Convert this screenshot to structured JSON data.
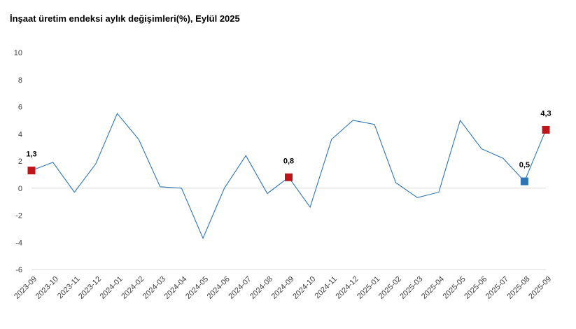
{
  "title": "İnşaat üretim endeksi aylık değişimleri(%), Eylül 2025",
  "chart_data": {
    "type": "line",
    "title": "İnşaat üretim endeksi aylık değişimleri(%), Eylül 2025",
    "xlabel": "",
    "ylabel": "",
    "ylim": [
      -6,
      10
    ],
    "yticks": [
      10,
      8,
      6,
      4,
      2,
      0,
      -2,
      -4,
      -6
    ],
    "ytick_labels": [
      "10",
      "8",
      "6",
      "4",
      "2",
      "0",
      "-2",
      "-4",
      "-6"
    ],
    "grid": false,
    "zero_line": true,
    "categories": [
      "2023-09",
      "2023-10",
      "2023-11",
      "2023-12",
      "2024-01",
      "2024-02",
      "2024-03",
      "2024-04",
      "2024-05",
      "2024-06",
      "2024-07",
      "2024-08",
      "2024-09",
      "2024-10",
      "2024-11",
      "2024-12",
      "2025-01",
      "2025-02",
      "2025-03",
      "2025-04",
      "2025-05",
      "2025-06",
      "2025-07",
      "2025-08",
      "2025-09"
    ],
    "values": [
      1.3,
      1.9,
      -0.3,
      1.8,
      5.5,
      3.6,
      0.1,
      0.0,
      -3.7,
      0.0,
      2.4,
      -0.4,
      0.8,
      -1.4,
      3.6,
      5.0,
      4.7,
      0.4,
      -0.7,
      -0.3,
      5.0,
      2.9,
      2.2,
      0.5,
      4.3
    ],
    "line_color": "#2e75b6",
    "highlights": [
      {
        "category": "2023-09",
        "value": 1.3,
        "label": "1,3",
        "color": "#c0141b"
      },
      {
        "category": "2024-09",
        "value": 0.8,
        "label": "0,8",
        "color": "#c0141b"
      },
      {
        "category": "2025-08",
        "value": 0.5,
        "label": "0,5",
        "color": "#2e75b6"
      },
      {
        "category": "2025-09",
        "value": 4.3,
        "label": "4,3",
        "color": "#c0141b"
      }
    ]
  }
}
